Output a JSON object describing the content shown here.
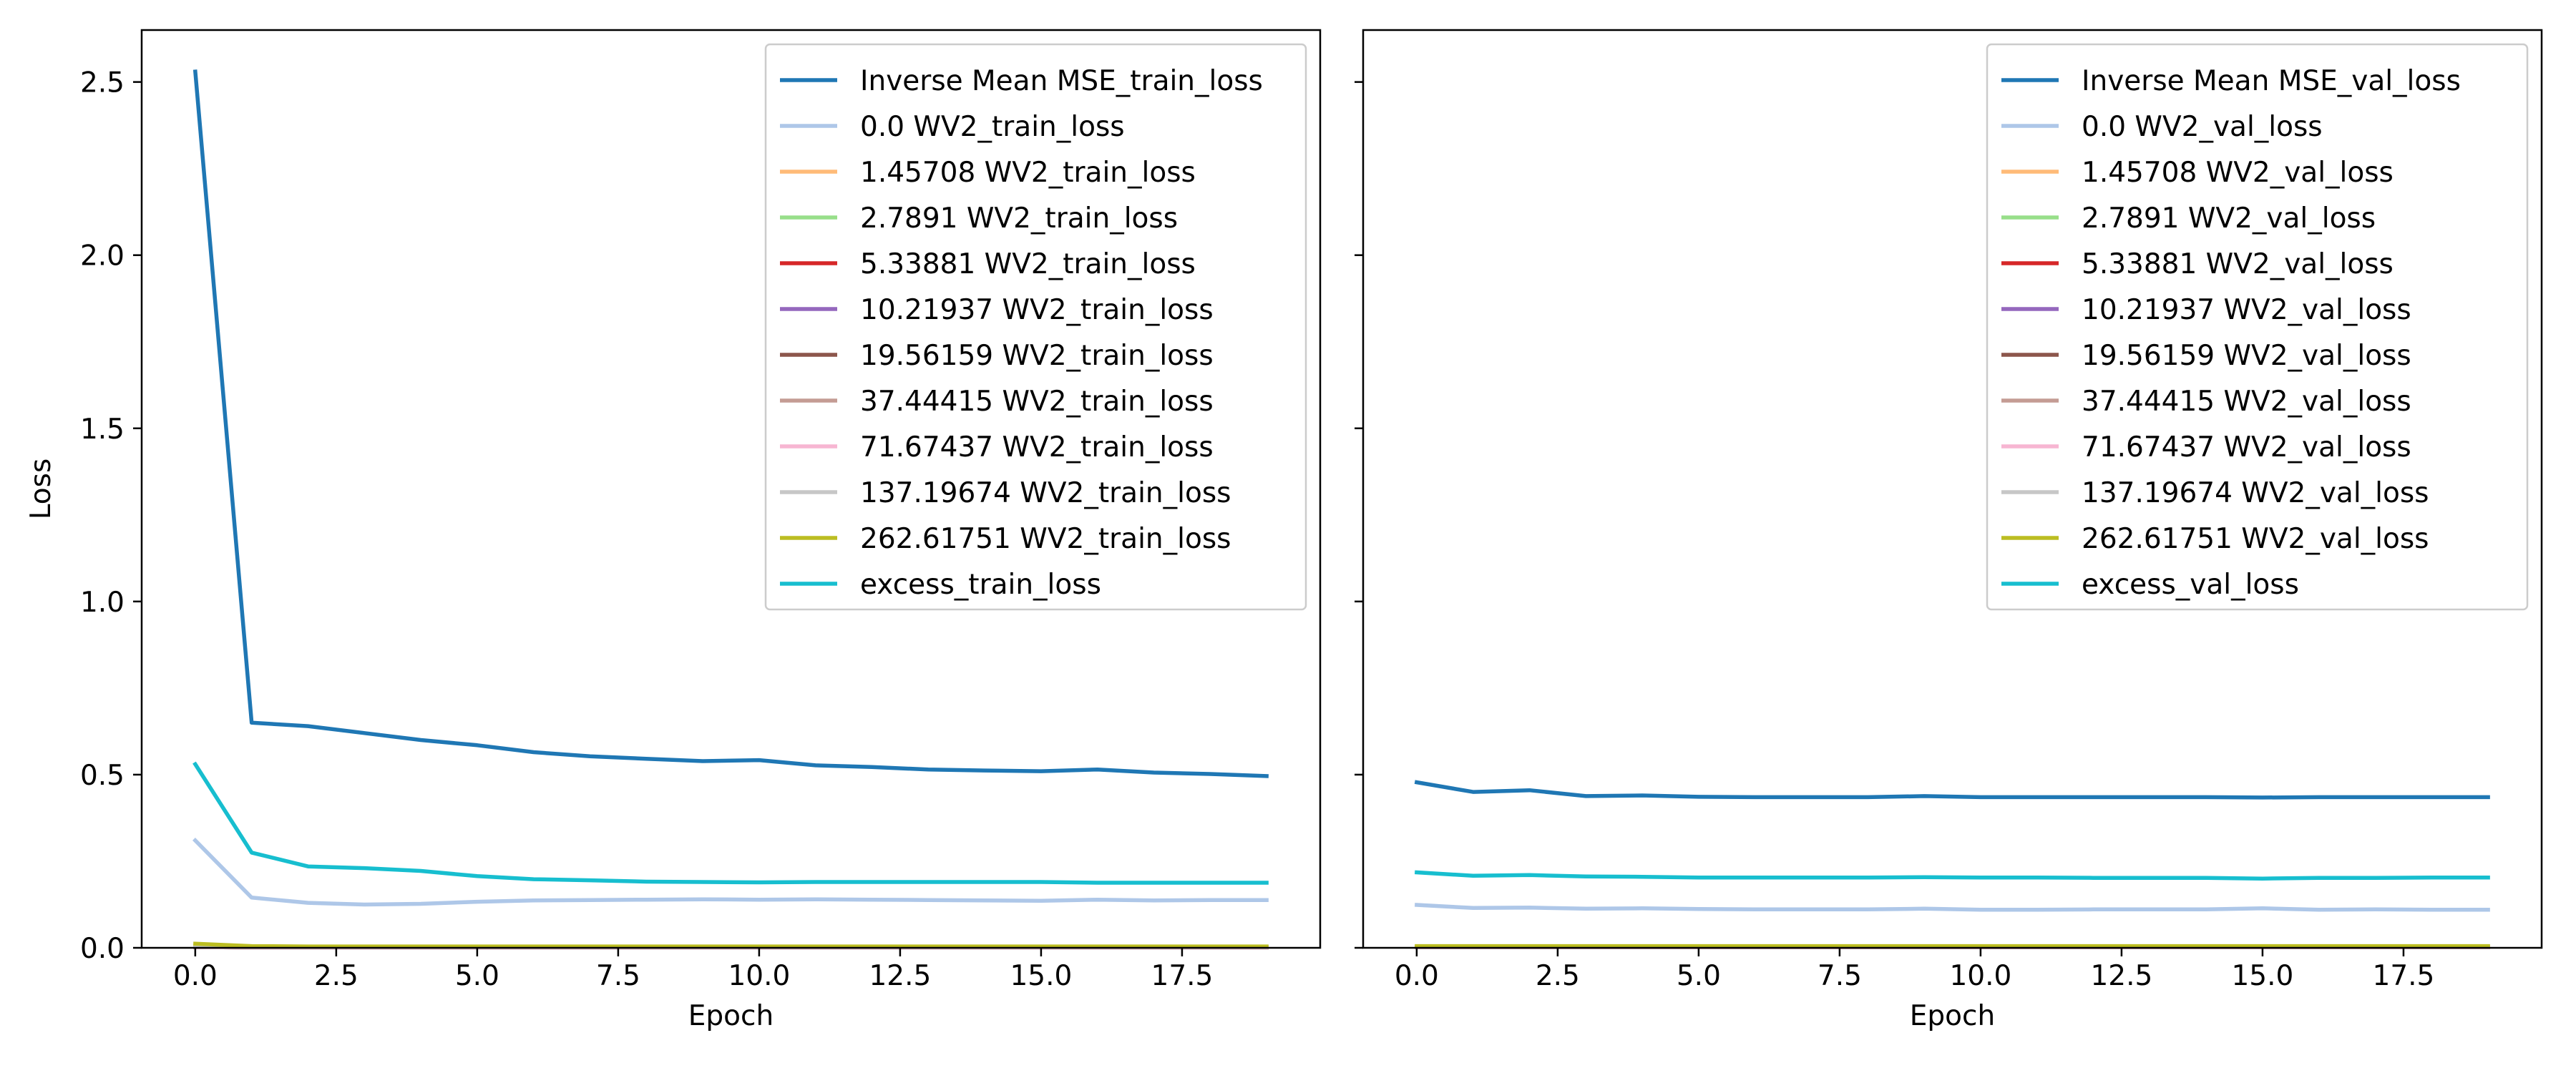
{
  "chart_data": [
    {
      "type": "line",
      "title": "",
      "xlabel": "Epoch",
      "ylabel": "Loss",
      "xlim": [
        -0.95,
        19.95
      ],
      "ylim": [
        0,
        2.65
      ],
      "xticks": [
        0.0,
        2.5,
        5.0,
        7.5,
        10.0,
        12.5,
        15.0,
        17.5
      ],
      "xtick_labels": [
        "0.0",
        "2.5",
        "5.0",
        "7.5",
        "10.0",
        "12.5",
        "15.0",
        "17.5"
      ],
      "yticks": [
        0.0,
        0.5,
        1.0,
        1.5,
        2.0,
        2.5
      ],
      "ytick_labels": [
        "0.0",
        "0.5",
        "1.0",
        "1.5",
        "2.0",
        "2.5"
      ],
      "grid": false,
      "legend_position": "top-right",
      "x": [
        0,
        1,
        2,
        3,
        4,
        5,
        6,
        7,
        8,
        9,
        10,
        11,
        12,
        13,
        14,
        15,
        16,
        17,
        18,
        19
      ],
      "series": [
        {
          "name": "Inverse Mean MSE_train_loss",
          "color": "#1f77b4",
          "values": [
            2.53,
            0.65,
            0.64,
            0.62,
            0.6,
            0.585,
            0.565,
            0.553,
            0.546,
            0.539,
            0.542,
            0.527,
            0.522,
            0.515,
            0.512,
            0.51,
            0.515,
            0.506,
            0.502,
            0.496
          ]
        },
        {
          "name": "0.0 WV2_train_loss",
          "color": "#aec7e8",
          "values": [
            0.31,
            0.145,
            0.13,
            0.125,
            0.127,
            0.133,
            0.137,
            0.138,
            0.139,
            0.14,
            0.139,
            0.14,
            0.139,
            0.138,
            0.137,
            0.136,
            0.139,
            0.137,
            0.138,
            0.138
          ]
        },
        {
          "name": "1.45708 WV2_train_loss",
          "color": "#ffbb78",
          "values": [
            0.004,
            0.002,
            0.002,
            0.002,
            0.002,
            0.002,
            0.002,
            0.002,
            0.002,
            0.002,
            0.002,
            0.002,
            0.002,
            0.002,
            0.002,
            0.002,
            0.002,
            0.002,
            0.002,
            0.002
          ]
        },
        {
          "name": "2.7891 WV2_train_loss",
          "color": "#98df8a",
          "values": [
            0.003,
            0.002,
            0.002,
            0.002,
            0.002,
            0.002,
            0.002,
            0.002,
            0.002,
            0.002,
            0.002,
            0.002,
            0.002,
            0.002,
            0.002,
            0.002,
            0.002,
            0.002,
            0.002,
            0.002
          ]
        },
        {
          "name": "5.33881 WV2_train_loss",
          "color": "#d62728",
          "values": [
            0.002,
            0.001,
            0.001,
            0.001,
            0.001,
            0.001,
            0.001,
            0.001,
            0.001,
            0.001,
            0.001,
            0.001,
            0.001,
            0.001,
            0.001,
            0.001,
            0.001,
            0.001,
            0.001,
            0.001
          ]
        },
        {
          "name": "10.21937 WV2_train_loss",
          "color": "#9467bd",
          "values": [
            0.002,
            0.001,
            0.001,
            0.001,
            0.001,
            0.001,
            0.001,
            0.001,
            0.001,
            0.001,
            0.001,
            0.001,
            0.001,
            0.001,
            0.001,
            0.001,
            0.001,
            0.001,
            0.001,
            0.001
          ]
        },
        {
          "name": "19.56159 WV2_train_loss",
          "color": "#8c564b",
          "values": [
            0.002,
            0.001,
            0.001,
            0.001,
            0.001,
            0.001,
            0.001,
            0.001,
            0.001,
            0.001,
            0.001,
            0.001,
            0.001,
            0.001,
            0.001,
            0.001,
            0.001,
            0.001,
            0.001,
            0.001
          ]
        },
        {
          "name": "37.44415 WV2_train_loss",
          "color": "#c49c94",
          "values": [
            0.002,
            0.001,
            0.001,
            0.001,
            0.001,
            0.001,
            0.001,
            0.001,
            0.001,
            0.001,
            0.001,
            0.001,
            0.001,
            0.001,
            0.001,
            0.001,
            0.001,
            0.001,
            0.001,
            0.001
          ]
        },
        {
          "name": "71.67437 WV2_train_loss",
          "color": "#f7b6d2",
          "values": [
            0.002,
            0.001,
            0.001,
            0.001,
            0.001,
            0.001,
            0.001,
            0.001,
            0.001,
            0.001,
            0.001,
            0.001,
            0.001,
            0.001,
            0.001,
            0.001,
            0.001,
            0.001,
            0.001,
            0.001
          ]
        },
        {
          "name": "137.19674 WV2_train_loss",
          "color": "#c7c7c7",
          "values": [
            0.003,
            0.002,
            0.002,
            0.002,
            0.002,
            0.002,
            0.002,
            0.002,
            0.002,
            0.002,
            0.002,
            0.002,
            0.002,
            0.002,
            0.002,
            0.002,
            0.002,
            0.002,
            0.002,
            0.002
          ]
        },
        {
          "name": "262.61751 WV2_train_loss",
          "color": "#bcbd22",
          "values": [
            0.012,
            0.005,
            0.004,
            0.004,
            0.004,
            0.004,
            0.004,
            0.004,
            0.004,
            0.004,
            0.004,
            0.004,
            0.004,
            0.004,
            0.004,
            0.004,
            0.004,
            0.004,
            0.004,
            0.004
          ]
        },
        {
          "name": "excess_train_loss",
          "color": "#17becf",
          "values": [
            0.53,
            0.275,
            0.235,
            0.23,
            0.222,
            0.207,
            0.198,
            0.195,
            0.191,
            0.19,
            0.189,
            0.19,
            0.19,
            0.19,
            0.19,
            0.19,
            0.188,
            0.188,
            0.188,
            0.188
          ]
        }
      ]
    },
    {
      "type": "line",
      "title": "",
      "xlabel": "Epoch",
      "ylabel": "",
      "xlim": [
        -0.95,
        19.95
      ],
      "ylim": [
        0,
        2.65
      ],
      "xticks": [
        0.0,
        2.5,
        5.0,
        7.5,
        10.0,
        12.5,
        15.0,
        17.5
      ],
      "xtick_labels": [
        "0.0",
        "2.5",
        "5.0",
        "7.5",
        "10.0",
        "12.5",
        "15.0",
        "17.5"
      ],
      "yticks": [
        0.0,
        0.5,
        1.0,
        1.5,
        2.0,
        2.5
      ],
      "ytick_labels": [
        "",
        "",
        "",
        "",
        "",
        ""
      ],
      "grid": false,
      "legend_position": "top-right",
      "x": [
        0,
        1,
        2,
        3,
        4,
        5,
        6,
        7,
        8,
        9,
        10,
        11,
        12,
        13,
        14,
        15,
        16,
        17,
        18,
        19
      ],
      "series": [
        {
          "name": "Inverse Mean MSE_val_loss",
          "color": "#1f77b4",
          "values": [
            0.478,
            0.45,
            0.455,
            0.438,
            0.44,
            0.436,
            0.435,
            0.435,
            0.435,
            0.438,
            0.435,
            0.435,
            0.435,
            0.435,
            0.435,
            0.434,
            0.435,
            0.435,
            0.435,
            0.435
          ]
        },
        {
          "name": "0.0 WV2_val_loss",
          "color": "#aec7e8",
          "values": [
            0.124,
            0.115,
            0.116,
            0.113,
            0.114,
            0.112,
            0.111,
            0.111,
            0.111,
            0.113,
            0.11,
            0.11,
            0.111,
            0.111,
            0.111,
            0.114,
            0.11,
            0.111,
            0.11,
            0.11
          ]
        },
        {
          "name": "1.45708 WV2_val_loss",
          "color": "#ffbb78",
          "values": [
            0.003,
            0.003,
            0.003,
            0.003,
            0.003,
            0.003,
            0.003,
            0.003,
            0.003,
            0.003,
            0.003,
            0.003,
            0.003,
            0.003,
            0.003,
            0.003,
            0.003,
            0.003,
            0.003,
            0.003
          ]
        },
        {
          "name": "2.7891 WV2_val_loss",
          "color": "#98df8a",
          "values": [
            0.003,
            0.003,
            0.003,
            0.003,
            0.003,
            0.003,
            0.003,
            0.003,
            0.003,
            0.003,
            0.003,
            0.003,
            0.003,
            0.003,
            0.003,
            0.003,
            0.003,
            0.003,
            0.003,
            0.003
          ]
        },
        {
          "name": "5.33881 WV2_val_loss",
          "color": "#d62728",
          "values": [
            0.002,
            0.002,
            0.002,
            0.002,
            0.002,
            0.002,
            0.002,
            0.002,
            0.002,
            0.002,
            0.002,
            0.002,
            0.002,
            0.002,
            0.002,
            0.002,
            0.002,
            0.002,
            0.002,
            0.002
          ]
        },
        {
          "name": "10.21937 WV2_val_loss",
          "color": "#9467bd",
          "values": [
            0.002,
            0.002,
            0.002,
            0.002,
            0.002,
            0.002,
            0.002,
            0.002,
            0.002,
            0.002,
            0.002,
            0.002,
            0.002,
            0.002,
            0.002,
            0.002,
            0.002,
            0.002,
            0.002,
            0.002
          ]
        },
        {
          "name": "19.56159 WV2_val_loss",
          "color": "#8c564b",
          "values": [
            0.002,
            0.002,
            0.002,
            0.002,
            0.002,
            0.002,
            0.002,
            0.002,
            0.002,
            0.002,
            0.002,
            0.002,
            0.002,
            0.002,
            0.002,
            0.002,
            0.002,
            0.002,
            0.002,
            0.002
          ]
        },
        {
          "name": "37.44415 WV2_val_loss",
          "color": "#c49c94",
          "values": [
            0.002,
            0.002,
            0.002,
            0.002,
            0.002,
            0.002,
            0.002,
            0.002,
            0.002,
            0.002,
            0.002,
            0.002,
            0.002,
            0.002,
            0.002,
            0.002,
            0.002,
            0.002,
            0.002,
            0.002
          ]
        },
        {
          "name": "71.67437 WV2_val_loss",
          "color": "#f7b6d2",
          "values": [
            0.002,
            0.002,
            0.002,
            0.002,
            0.002,
            0.002,
            0.002,
            0.002,
            0.002,
            0.002,
            0.002,
            0.002,
            0.002,
            0.002,
            0.002,
            0.002,
            0.002,
            0.002,
            0.002,
            0.002
          ]
        },
        {
          "name": "137.19674 WV2_val_loss",
          "color": "#c7c7c7",
          "values": [
            0.003,
            0.003,
            0.003,
            0.003,
            0.003,
            0.003,
            0.003,
            0.003,
            0.003,
            0.003,
            0.003,
            0.003,
            0.003,
            0.003,
            0.003,
            0.003,
            0.003,
            0.003,
            0.003,
            0.003
          ]
        },
        {
          "name": "262.61751 WV2_val_loss",
          "color": "#bcbd22",
          "values": [
            0.005,
            0.005,
            0.005,
            0.005,
            0.005,
            0.005,
            0.005,
            0.005,
            0.005,
            0.005,
            0.005,
            0.005,
            0.005,
            0.005,
            0.005,
            0.005,
            0.005,
            0.005,
            0.005,
            0.005
          ]
        },
        {
          "name": "excess_val_loss",
          "color": "#17becf",
          "values": [
            0.218,
            0.208,
            0.21,
            0.206,
            0.205,
            0.203,
            0.203,
            0.203,
            0.203,
            0.204,
            0.203,
            0.203,
            0.202,
            0.202,
            0.202,
            0.2,
            0.202,
            0.202,
            0.203,
            0.203
          ]
        }
      ]
    }
  ]
}
